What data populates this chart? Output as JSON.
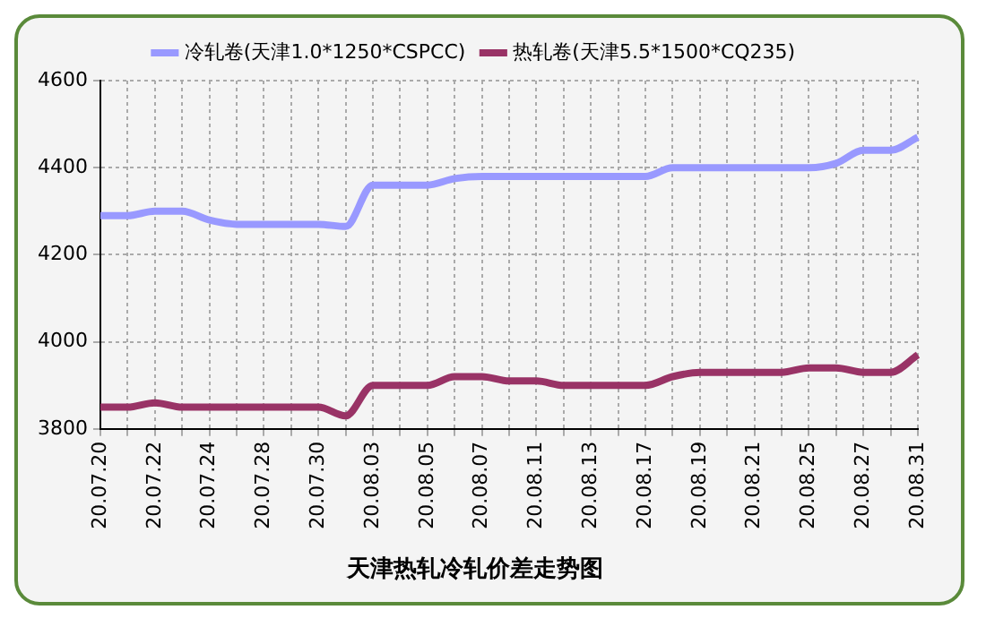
{
  "chart_data": {
    "type": "line",
    "title": "天津热轧冷轧价差走势图",
    "categories": [
      "20.07.20",
      null,
      "20.07.22",
      null,
      "20.07.24",
      null,
      "20.07.28",
      null,
      "20.07.30",
      null,
      "20.08.03",
      null,
      "20.08.05",
      null,
      "20.08.07",
      null,
      "20.08.11",
      null,
      "20.08.13",
      null,
      "20.08.17",
      null,
      "20.08.19",
      null,
      "20.08.21",
      null,
      "20.08.25",
      null,
      "20.08.27",
      null,
      "20.08.31"
    ],
    "series": [
      {
        "name": "冷轧卷(天津1.0*1250*CSPCC)",
        "color": "#9999ff",
        "values": [
          4290,
          4290,
          4300,
          4300,
          4280,
          4270,
          4270,
          4270,
          4270,
          4265,
          4360,
          4360,
          4360,
          4375,
          4380,
          4380,
          4380,
          4380,
          4380,
          4380,
          4380,
          4400,
          4400,
          4400,
          4400,
          4400,
          4400,
          4410,
          4440,
          4440,
          4470
        ]
      },
      {
        "name": "热轧卷(天津5.5*1500*CQ235)",
        "color": "#993366",
        "values": [
          3850,
          3850,
          3860,
          3850,
          3850,
          3850,
          3850,
          3850,
          3850,
          3830,
          3900,
          3900,
          3900,
          3920,
          3920,
          3910,
          3910,
          3900,
          3900,
          3900,
          3900,
          3920,
          3930,
          3930,
          3930,
          3930,
          3940,
          3940,
          3930,
          3930,
          3970
        ]
      }
    ],
    "ylim": [
      3800,
      4600
    ],
    "yticks": [
      3800,
      4000,
      4200,
      4400,
      4600
    ],
    "grid": true,
    "legend": "top",
    "marker": "none",
    "line_style": "solid"
  }
}
